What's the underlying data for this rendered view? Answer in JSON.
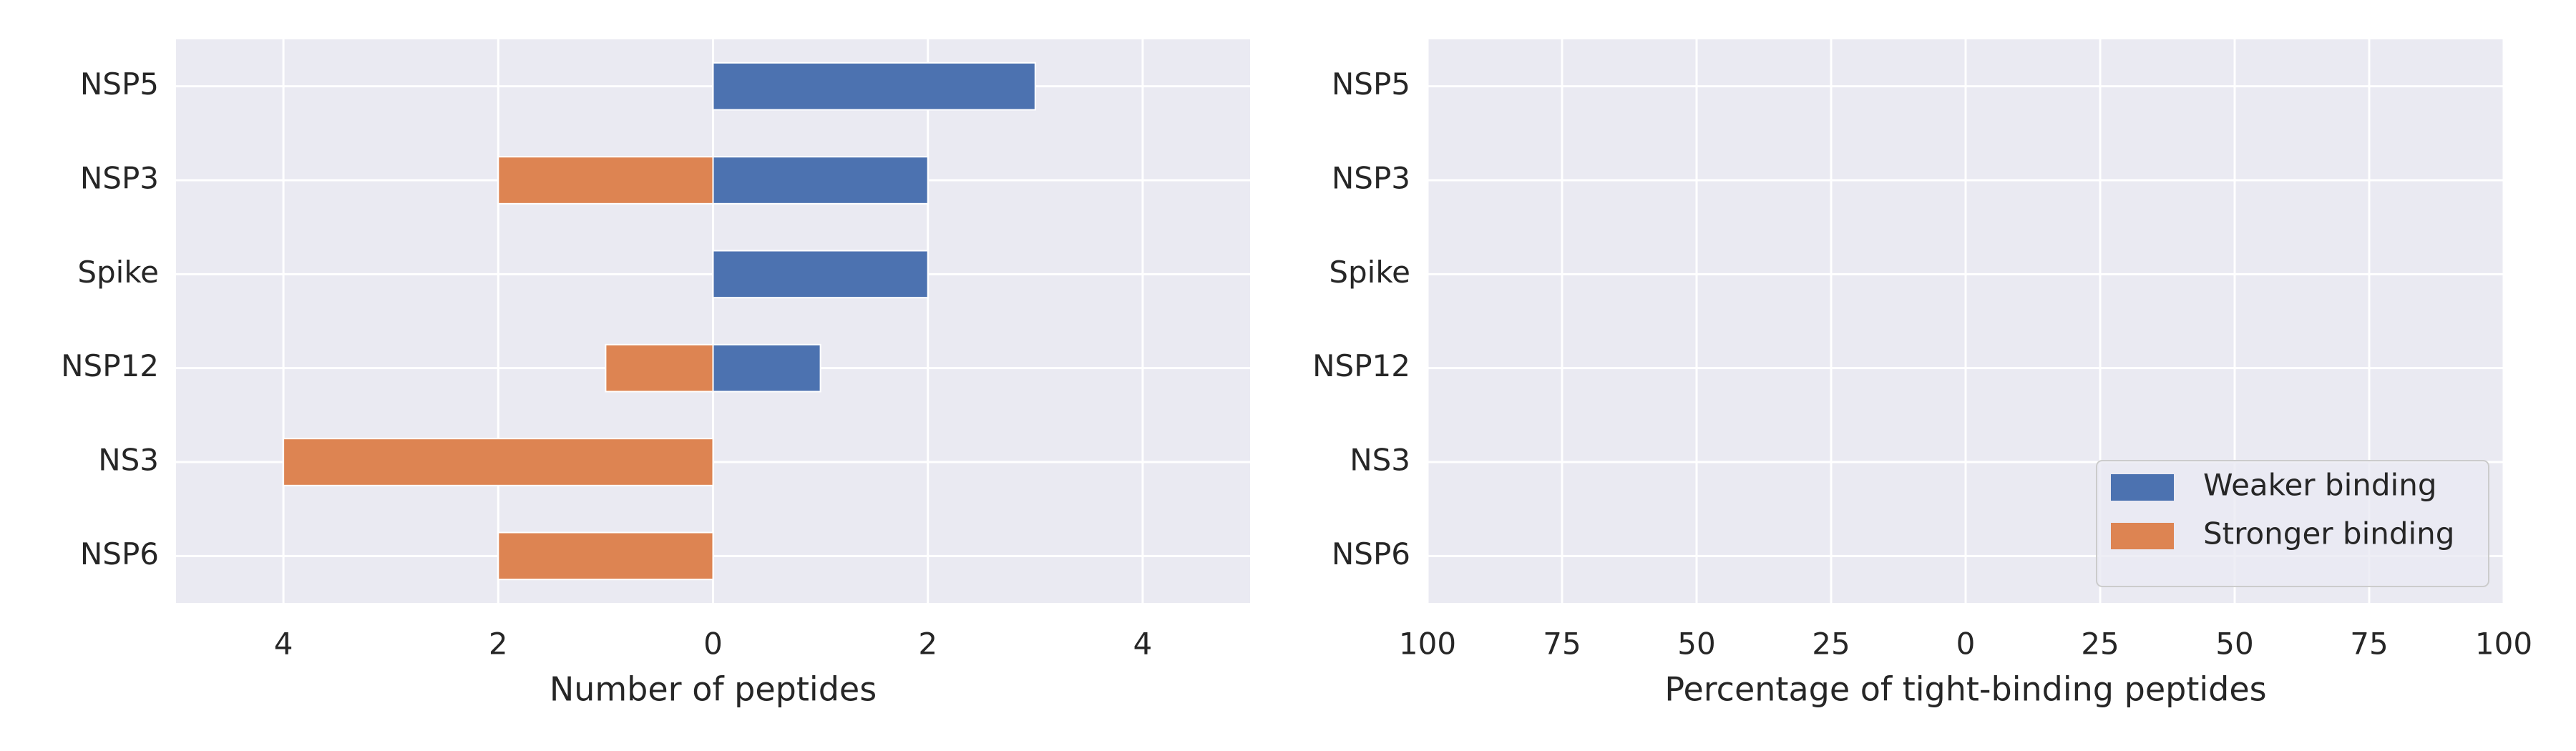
{
  "chart_data": [
    {
      "type": "barh",
      "categories": [
        "NSP5",
        "NSP3",
        "Spike",
        "NSP12",
        "NS3",
        "NSP6"
      ],
      "series": [
        {
          "name": "Weaker binding",
          "color": "#4c72b0",
          "values": [
            3,
            2,
            2,
            1,
            0,
            0
          ]
        },
        {
          "name": "Stronger binding",
          "color": "#dd8452",
          "values": [
            0,
            -2,
            0,
            -1,
            -4,
            -2
          ]
        }
      ],
      "xlabel": "Number of peptides",
      "xlim": [
        -5,
        5
      ],
      "xticks": [
        {
          "value": -4,
          "label": "4"
        },
        {
          "value": -2,
          "label": "2"
        },
        0,
        2,
        4
      ],
      "grid": true
    },
    {
      "type": "barh",
      "categories": [
        "NSP5",
        "NSP3",
        "Spike",
        "NSP12",
        "NS3",
        "NSP6"
      ],
      "xlabel": "Percentage of tight-binding peptides",
      "xlim": [
        -100,
        100
      ],
      "xticks": [
        {
          "value": -100,
          "label": "100"
        },
        {
          "value": -75,
          "label": "75"
        },
        {
          "value": -50,
          "label": "50"
        },
        {
          "value": -25,
          "label": "25"
        },
        0,
        25,
        50,
        75,
        100
      ],
      "grid": true,
      "legend": {
        "position": "lower right",
        "entries": [
          {
            "name": "Weaker binding",
            "color": "#4c72b0"
          },
          {
            "name": "Stronger binding",
            "color": "#dd8452"
          }
        ]
      }
    }
  ]
}
